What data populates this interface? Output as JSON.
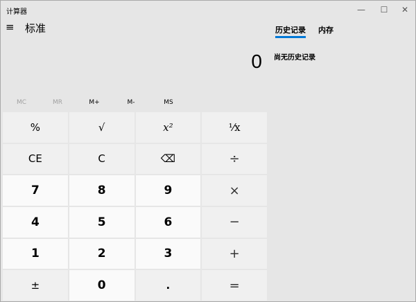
{
  "window": {
    "title": "计算器",
    "minimize": "—",
    "maximize": "☐",
    "close": "✕"
  },
  "header": {
    "menu_icon": "≡",
    "mode": "标准"
  },
  "display": {
    "value": "0"
  },
  "panel": {
    "tabs": [
      "历史记录",
      "内存"
    ],
    "active_tab": "历史记录",
    "empty_text": "尚无历史记录",
    "accent": "#0078d7"
  },
  "memory": [
    "MC",
    "MR",
    "M+",
    "M-",
    "MS"
  ],
  "keys": [
    "%",
    "√",
    "x²",
    "⅟x",
    "CE",
    "C",
    "⌫",
    "÷",
    "7",
    "8",
    "9",
    "×",
    "4",
    "5",
    "6",
    "−",
    "1",
    "2",
    "3",
    "+",
    "±",
    "0",
    ".",
    "="
  ]
}
